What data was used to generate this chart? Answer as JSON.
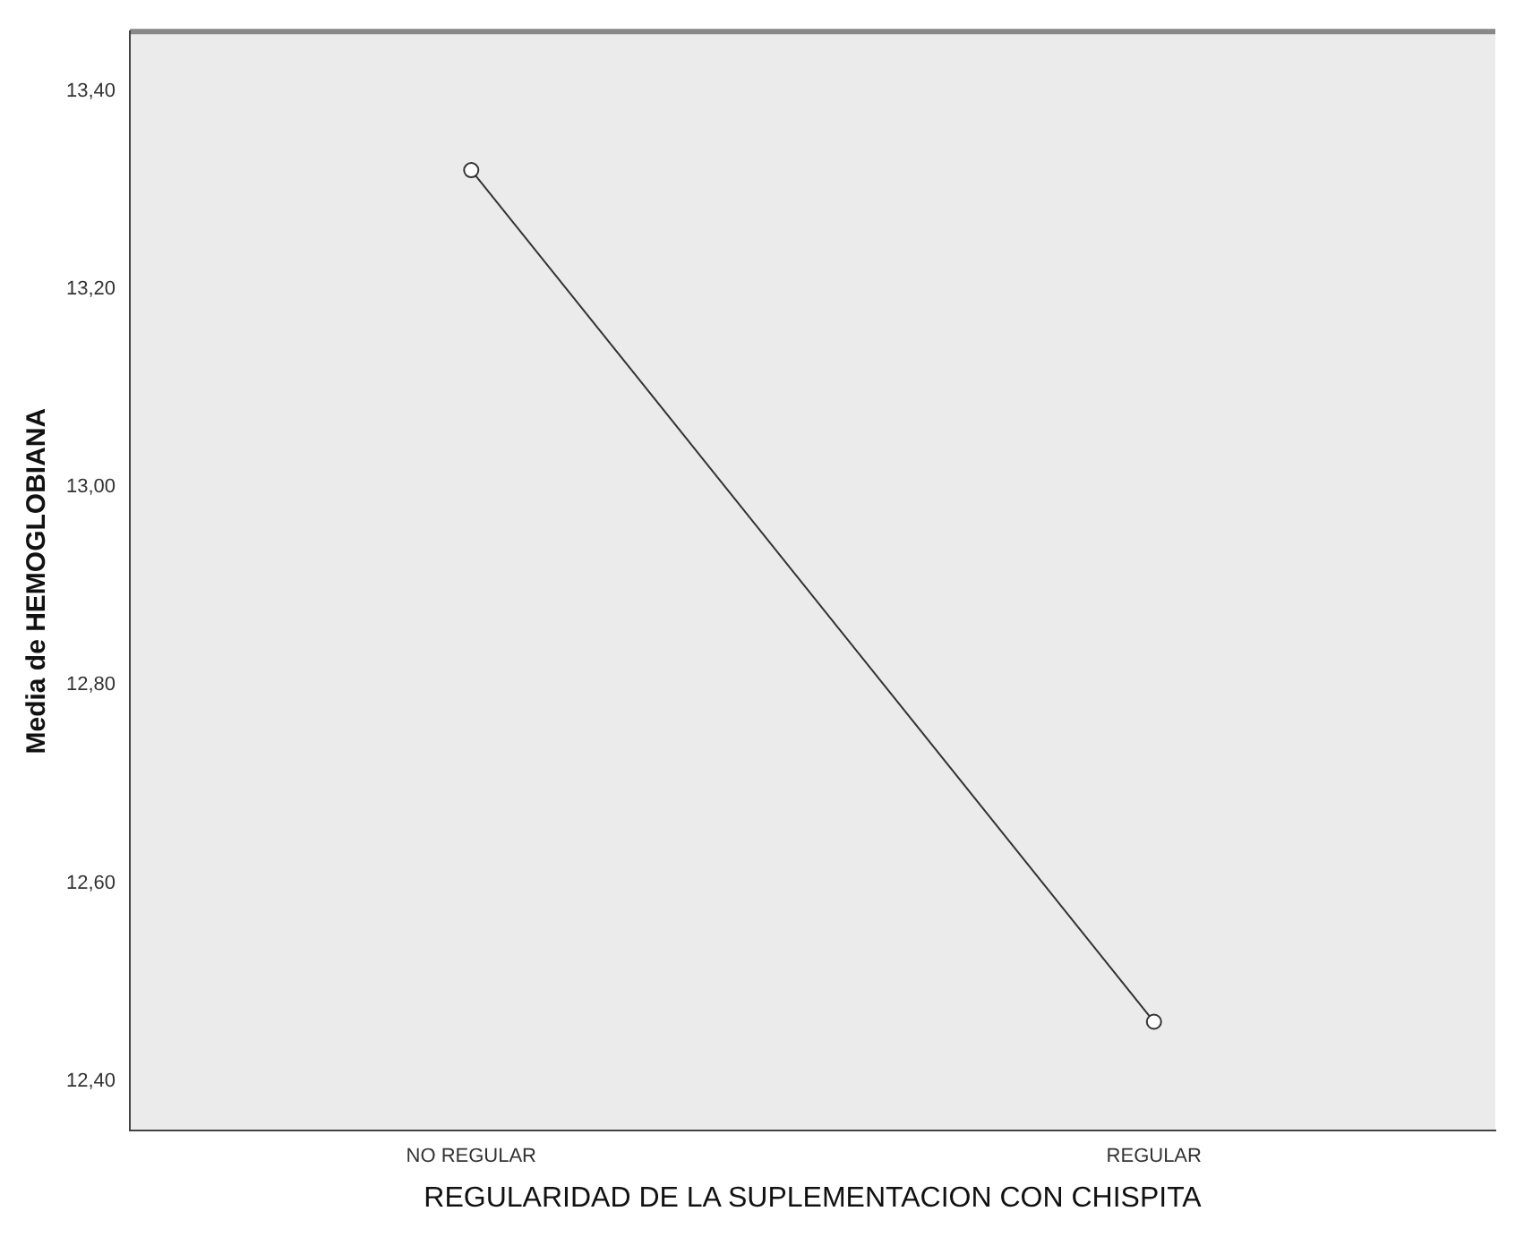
{
  "chart_data": {
    "type": "line",
    "xlabel": "REGULARIDAD DE LA SUPLEMENTACION CON CHISPITA",
    "ylabel": "Media de HEMOGLOBIANA",
    "categories": [
      "NO REGULAR",
      "REGULAR"
    ],
    "series": [
      {
        "color": "#333333",
        "values": [
          13.32,
          12.46
        ]
      }
    ],
    "ylim": [
      12.35,
      13.46
    ],
    "yticks": [
      {
        "value": 12.4,
        "label": "12,40"
      },
      {
        "value": 12.6,
        "label": "12,60"
      },
      {
        "value": 12.8,
        "label": "12,80"
      },
      {
        "value": 13.0,
        "label": "13,00"
      },
      {
        "value": 13.2,
        "label": "13,20"
      },
      {
        "value": 13.4,
        "label": "13,40"
      }
    ],
    "grid": false,
    "legend": false,
    "marker": "circle",
    "line_style": "solid"
  }
}
